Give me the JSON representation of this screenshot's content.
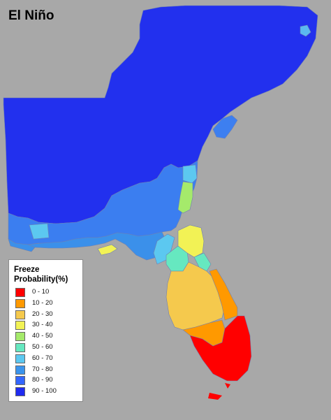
{
  "title": "El Niño",
  "legend": {
    "title_line1": "Freeze",
    "title_line2": "Probability(%)",
    "items": [
      {
        "label": "0 - 10",
        "color": "#ff0000"
      },
      {
        "label": "10 - 20",
        "color": "#ff9900"
      },
      {
        "label": "20 - 30",
        "color": "#f5c94d"
      },
      {
        "label": "30 - 40",
        "color": "#f2f255"
      },
      {
        "label": "40 - 50",
        "color": "#a5ea6b"
      },
      {
        "label": "50 - 60",
        "color": "#66e8c0"
      },
      {
        "label": "60 - 70",
        "color": "#5cc8f0"
      },
      {
        "label": "70 - 80",
        "color": "#3b94ec"
      },
      {
        "label": "80 - 90",
        "color": "#3366ff"
      },
      {
        "label": "90 - 100",
        "color": "#1f2bf0"
      }
    ]
  },
  "map_regions": [
    {
      "name": "north-interior",
      "class": "90 - 100"
    },
    {
      "name": "nc-outer-banks",
      "class": "60 - 70"
    },
    {
      "name": "sc-coast",
      "class": "70 - 80"
    },
    {
      "name": "ga-coast",
      "class": "60 - 70"
    },
    {
      "name": "south-ga-belt",
      "class": "70 - 80"
    },
    {
      "name": "panhandle-belt",
      "class": "70 - 80"
    },
    {
      "name": "panhandle-shore-patch",
      "class": "30 - 40"
    },
    {
      "name": "ne-fl-coast",
      "class": "40 - 50"
    },
    {
      "name": "north-fl-center",
      "class": "30 - 40"
    },
    {
      "name": "north-fl-west",
      "class": "60 - 70"
    },
    {
      "name": "north-fl-teal",
      "class": "50 - 60"
    },
    {
      "name": "central-fl",
      "class": "20 - 30"
    },
    {
      "name": "fl-east-coast",
      "class": "10 - 20"
    },
    {
      "name": "south-fl-band",
      "class": "10 - 20"
    },
    {
      "name": "south-fl",
      "class": "0 - 10"
    }
  ]
}
